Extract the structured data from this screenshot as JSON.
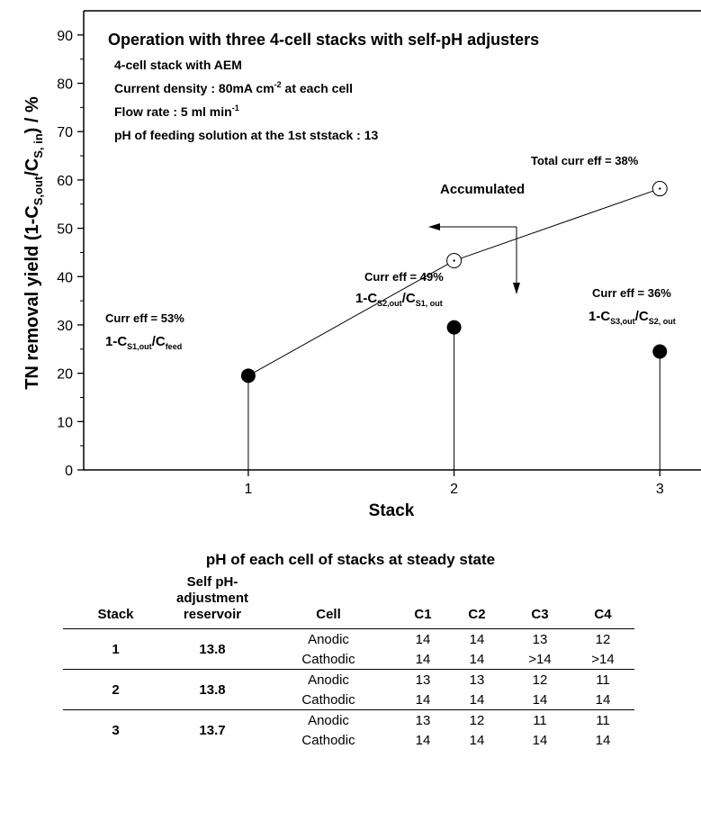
{
  "chart_data": {
    "type": "scatter",
    "title": "Operation with three 4-cell stacks with self-pH adjusters",
    "notes": [
      "4-cell stack with AEM",
      "Current density : 80mA cm",
      "-2",
      " at each cell",
      "Flow rate : 5 ml min",
      "-1",
      "pH of  feeding solution at the 1st ststack : 13"
    ],
    "xlabel": "Stack",
    "ylabel_parts": [
      "TN removal yield  (1-C",
      "S,out",
      "/C",
      "S, in",
      ") / %"
    ],
    "x_ticks": [
      "1",
      "2",
      "3"
    ],
    "y_ticks": [
      "0",
      "10",
      "20",
      "30",
      "40",
      "50",
      "60",
      "70",
      "80",
      "90"
    ],
    "xlim": [
      0.2,
      3.2
    ],
    "ylim": [
      0,
      95
    ],
    "stack_yield": {
      "name": "",
      "x": [
        1,
        2,
        3
      ],
      "y": [
        19.5,
        29.5,
        24.5
      ]
    },
    "accumulated": {
      "name": "Accumulated",
      "x": [
        1,
        2,
        3
      ],
      "y": [
        19.5,
        43.3,
        58.2
      ]
    },
    "annotations": {
      "s1_eff": "Curr eff = 53%",
      "s1_f_a": "1-C",
      "s1_f_b": "S1,out",
      "s1_f_c": "/C",
      "s1_f_d": "feed",
      "s2_eff": "Curr eff = 49%",
      "s2_f_a": "1-C",
      "s2_f_b": "S2,out",
      "s2_f_c": "/C",
      "s2_f_d": "S1, out",
      "s3_eff": "Curr eff = 36%",
      "s3_f_a": "1-C",
      "s3_f_b": "S3,out",
      "s3_f_c": "/C",
      "s3_f_d": "S2, out",
      "total": "Total curr eff = 38%",
      "accumulated": "Accumulated"
    }
  },
  "table": {
    "title": "pH of each cell of stacks at steady state",
    "headers": {
      "stack": "Stack",
      "reservoir_1": "Self pH-",
      "reservoir_2": "adjustment",
      "reservoir_3": "reservoir",
      "cell": "Cell",
      "c1": "C1",
      "c2": "C2",
      "c3": "C3",
      "c4": "C4"
    },
    "rows": [
      {
        "stack": "1",
        "reservoir": "13.8",
        "anodic": [
          "14",
          "14",
          "13",
          "12"
        ],
        "cathodic": [
          "14",
          "14",
          ">14",
          ">14"
        ]
      },
      {
        "stack": "2",
        "reservoir": "13.8",
        "anodic": [
          "13",
          "13",
          "12",
          "11"
        ],
        "cathodic": [
          "14",
          "14",
          "14",
          "14"
        ]
      },
      {
        "stack": "3",
        "reservoir": "13.7",
        "anodic": [
          "13",
          "12",
          "11",
          "11"
        ],
        "cathodic": [
          "14",
          "14",
          "14",
          "14"
        ]
      }
    ],
    "anodic_label": "Anodic",
    "cathodic_label": "Cathodic"
  }
}
